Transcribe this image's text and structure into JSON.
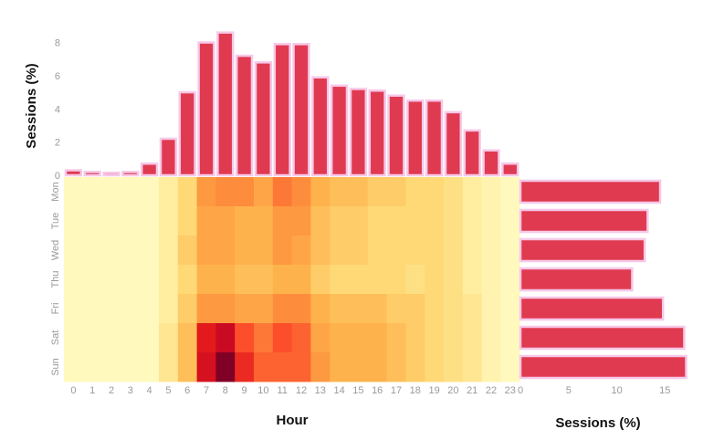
{
  "chart_data": {
    "type": "heatmap",
    "title": "",
    "xlabel": "Hour",
    "ylabel_top": "Sessions (%)",
    "xlabel_right": "Sessions (%)",
    "hours": [
      "0",
      "1",
      "2",
      "3",
      "4",
      "5",
      "6",
      "7",
      "8",
      "9",
      "10",
      "11",
      "12",
      "13",
      "14",
      "15",
      "16",
      "17",
      "18",
      "19",
      "20",
      "21",
      "22",
      "23"
    ],
    "days": [
      "Mon",
      "Tue",
      "Wed",
      "Thu",
      "Fri",
      "Sat",
      "Sun"
    ],
    "top_bars": {
      "values": [
        0.3,
        0.2,
        0.15,
        0.2,
        0.7,
        2.2,
        5.0,
        8.0,
        8.6,
        7.2,
        6.8,
        7.9,
        7.9,
        5.9,
        5.4,
        5.2,
        5.1,
        4.8,
        4.5,
        4.5,
        3.8,
        2.7,
        1.5,
        0.7
      ],
      "ylim": [
        0,
        8.8
      ],
      "ticks": [
        "0",
        "2",
        "4",
        "6",
        "8"
      ]
    },
    "right_bars": {
      "values": [
        14.5,
        13.2,
        12.9,
        11.6,
        14.8,
        17.0,
        17.2
      ],
      "xlim": [
        0,
        18
      ],
      "ticks": [
        "0",
        "5",
        "10",
        "15"
      ]
    },
    "heatmap": [
      [
        0.1,
        0.1,
        0.1,
        0.1,
        0.1,
        0.3,
        0.6,
        1.1,
        1.2,
        1.2,
        1.0,
        1.3,
        1.2,
        0.9,
        0.8,
        0.8,
        0.7,
        0.7,
        0.6,
        0.6,
        0.5,
        0.3,
        0.2,
        0.1
      ],
      [
        0.1,
        0.1,
        0.1,
        0.1,
        0.1,
        0.3,
        0.6,
        1.0,
        1.0,
        0.9,
        0.9,
        1.1,
        1.1,
        0.8,
        0.7,
        0.7,
        0.6,
        0.6,
        0.6,
        0.6,
        0.5,
        0.3,
        0.2,
        0.1
      ],
      [
        0.1,
        0.1,
        0.1,
        0.1,
        0.1,
        0.3,
        0.7,
        1.0,
        1.0,
        0.9,
        0.9,
        1.1,
        1.0,
        0.8,
        0.7,
        0.7,
        0.6,
        0.6,
        0.6,
        0.6,
        0.5,
        0.3,
        0.2,
        0.1
      ],
      [
        0.1,
        0.1,
        0.1,
        0.1,
        0.1,
        0.3,
        0.6,
        0.9,
        0.9,
        0.8,
        0.8,
        0.9,
        0.9,
        0.7,
        0.6,
        0.6,
        0.6,
        0.6,
        0.5,
        0.6,
        0.5,
        0.3,
        0.2,
        0.1
      ],
      [
        0.1,
        0.1,
        0.1,
        0.1,
        0.1,
        0.3,
        0.7,
        1.1,
        1.1,
        1.0,
        1.0,
        1.2,
        1.2,
        0.9,
        0.8,
        0.8,
        0.8,
        0.7,
        0.7,
        0.6,
        0.5,
        0.4,
        0.2,
        0.1
      ],
      [
        0.1,
        0.1,
        0.1,
        0.1,
        0.1,
        0.4,
        0.8,
        1.8,
        2.0,
        1.5,
        1.3,
        1.5,
        1.4,
        1.0,
        0.9,
        0.9,
        0.9,
        0.8,
        0.7,
        0.6,
        0.5,
        0.4,
        0.2,
        0.1
      ],
      [
        0.1,
        0.1,
        0.1,
        0.1,
        0.1,
        0.4,
        0.8,
        1.9,
        2.4,
        1.7,
        1.4,
        1.4,
        1.4,
        1.1,
        0.9,
        0.9,
        0.9,
        0.8,
        0.7,
        0.6,
        0.5,
        0.4,
        0.2,
        0.1
      ]
    ],
    "colors": {
      "bar": "#e03a50",
      "bar_edge": "#f6c8e8",
      "cmap": [
        "#ffffcc",
        "#ffeda0",
        "#fed976",
        "#feb24c",
        "#fd8d3c",
        "#fc4e2a",
        "#e31a1c",
        "#bd0026",
        "#800026"
      ]
    }
  }
}
